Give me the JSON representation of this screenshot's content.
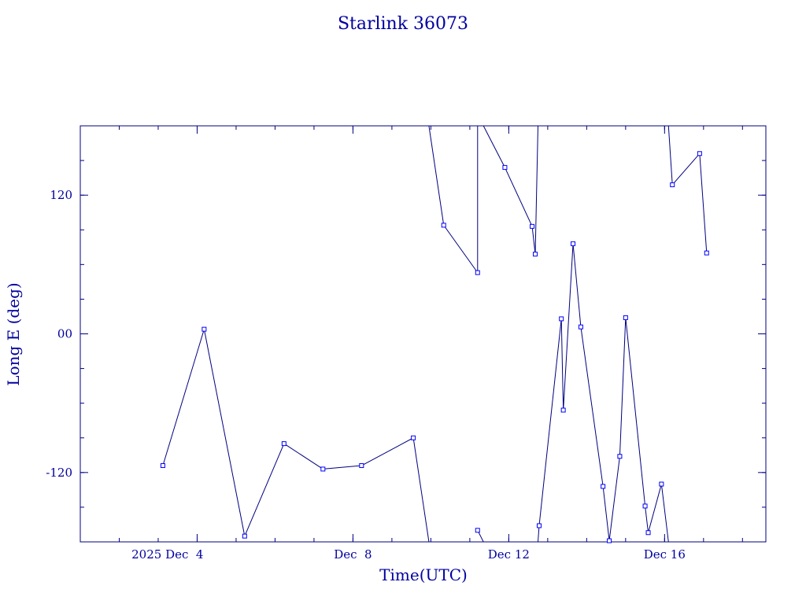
{
  "chart_data": {
    "type": "scatter",
    "title": "Starlink 36073",
    "xlabel": "Time(UTC)",
    "ylabel": "Long E (deg)",
    "x_ticks": [
      {
        "day": 4,
        "label": "2025 Dec  4"
      },
      {
        "day": 8,
        "label": "Dec  8"
      },
      {
        "day": 12,
        "label": "Dec 12"
      },
      {
        "day": 16,
        "label": "Dec 16"
      }
    ],
    "y_ticks": [
      {
        "value": 120,
        "label": "120"
      },
      {
        "value": 0,
        "label": "00"
      },
      {
        "value": -120,
        "label": "-120"
      }
    ],
    "xlim": [
      1.0,
      18.6
    ],
    "ylim": [
      -180,
      180
    ],
    "x_unit": "days of December 2025 (UTC)",
    "series": [
      {
        "points": [
          [
            3.12,
            -114
          ],
          [
            4.18,
            4
          ],
          [
            5.22,
            -175
          ],
          [
            6.23,
            -95
          ],
          [
            7.23,
            -117
          ],
          [
            8.22,
            -114
          ],
          [
            9.55,
            -90
          ],
          [
            9.95,
            -180
          ],
          [
            null,
            null
          ],
          [
            9.95,
            180
          ],
          [
            10.33,
            94
          ],
          [
            11.2,
            53
          ],
          [
            11.2,
            180
          ],
          [
            null,
            null
          ],
          [
            11.2,
            -170
          ],
          [
            11.35,
            -180
          ],
          [
            null,
            null
          ],
          [
            11.35,
            180
          ],
          [
            11.9,
            144
          ],
          [
            12.6,
            93
          ],
          [
            12.68,
            69
          ],
          [
            12.75,
            180
          ],
          [
            null,
            null
          ],
          [
            12.75,
            -180
          ],
          [
            12.78,
            -166
          ],
          [
            13.35,
            13
          ],
          [
            13.4,
            -66
          ],
          [
            13.65,
            78
          ],
          [
            13.85,
            6
          ],
          [
            14.42,
            -132
          ],
          [
            14.58,
            -179
          ],
          [
            14.85,
            -106
          ],
          [
            15.0,
            14
          ],
          [
            15.5,
            -149
          ],
          [
            15.58,
            -172
          ],
          [
            15.92,
            -130
          ],
          [
            16.1,
            -180
          ],
          [
            null,
            null
          ],
          [
            16.1,
            180
          ],
          [
            16.2,
            129
          ],
          [
            16.9,
            156
          ],
          [
            17.08,
            70
          ]
        ],
        "markers": [
          [
            3.12,
            -114
          ],
          [
            4.18,
            4
          ],
          [
            5.22,
            -175
          ],
          [
            6.23,
            -95
          ],
          [
            7.23,
            -117
          ],
          [
            8.22,
            -114
          ],
          [
            9.55,
            -90
          ],
          [
            10.33,
            94
          ],
          [
            11.2,
            53
          ],
          [
            11.2,
            -170
          ],
          [
            11.9,
            144
          ],
          [
            12.6,
            93
          ],
          [
            12.68,
            69
          ],
          [
            12.78,
            -166
          ],
          [
            13.35,
            13
          ],
          [
            13.4,
            -66
          ],
          [
            13.65,
            78
          ],
          [
            13.85,
            6
          ],
          [
            14.42,
            -132
          ],
          [
            14.58,
            -179
          ],
          [
            14.85,
            -106
          ],
          [
            15.0,
            14
          ],
          [
            15.5,
            -149
          ],
          [
            15.58,
            -172
          ],
          [
            15.92,
            -130
          ],
          [
            16.2,
            129
          ],
          [
            16.9,
            156
          ],
          [
            17.08,
            70
          ]
        ]
      }
    ]
  }
}
